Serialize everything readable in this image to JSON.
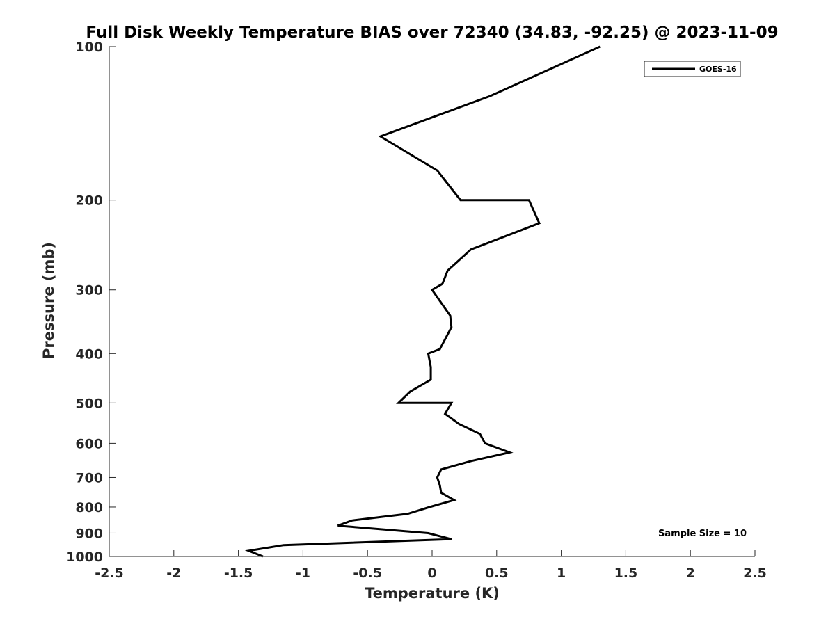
{
  "chart_data": {
    "type": "line",
    "title": "Full Disk Weekly Temperature BIAS over 72340 (34.83, -92.25) @ 2023-11-09",
    "xlabel": "Temperature (K)",
    "ylabel": "Pressure (mb)",
    "xlim": [
      -2.5,
      2.5
    ],
    "ylim": [
      1000,
      100
    ],
    "y_scale": "log",
    "y_reversed": true,
    "x_ticks": [
      -2.5,
      -2,
      -1.5,
      -1,
      -0.5,
      0,
      0.5,
      1,
      1.5,
      2,
      2.5
    ],
    "x_tick_labels": [
      "-2.5",
      "-2",
      "-1.5",
      "-1",
      "-0.5",
      "0",
      "0.5",
      "1",
      "1.5",
      "2",
      "2.5"
    ],
    "y_ticks": [
      100,
      200,
      300,
      400,
      500,
      600,
      700,
      800,
      900,
      1000
    ],
    "y_tick_labels": [
      "100",
      "200",
      "300",
      "400",
      "500",
      "600",
      "700",
      "800",
      "900",
      "1000"
    ],
    "grid": false,
    "legend_position": "top-right",
    "series": [
      {
        "name": "GOES-16",
        "color": "#000000",
        "points": [
          [
            1.3,
            100
          ],
          [
            0.45,
            125
          ],
          [
            -0.4,
            150
          ],
          [
            0.04,
            175
          ],
          [
            0.22,
            200
          ],
          [
            0.75,
            200
          ],
          [
            0.83,
            222
          ],
          [
            0.3,
            250
          ],
          [
            0.12,
            275
          ],
          [
            0.08,
            292
          ],
          [
            0.0,
            300
          ],
          [
            0.14,
            337
          ],
          [
            0.15,
            355
          ],
          [
            0.1,
            375
          ],
          [
            0.06,
            392
          ],
          [
            -0.03,
            400
          ],
          [
            -0.01,
            425
          ],
          [
            -0.01,
            450
          ],
          [
            -0.17,
            475
          ],
          [
            -0.26,
            500
          ],
          [
            0.15,
            500
          ],
          [
            0.1,
            525
          ],
          [
            0.21,
            550
          ],
          [
            0.37,
            575
          ],
          [
            0.41,
            600
          ],
          [
            0.6,
            625
          ],
          [
            0.3,
            650
          ],
          [
            0.07,
            675
          ],
          [
            0.04,
            700
          ],
          [
            0.06,
            725
          ],
          [
            0.07,
            750
          ],
          [
            0.17,
            775
          ],
          [
            -0.02,
            800
          ],
          [
            -0.19,
            825
          ],
          [
            -0.62,
            850
          ],
          [
            -0.73,
            870
          ],
          [
            -0.03,
            900
          ],
          [
            0.15,
            925
          ],
          [
            -1.15,
            950
          ],
          [
            -1.42,
            975
          ],
          [
            -1.31,
            1000
          ]
        ]
      }
    ],
    "annotation": "Sample Size = 10"
  }
}
